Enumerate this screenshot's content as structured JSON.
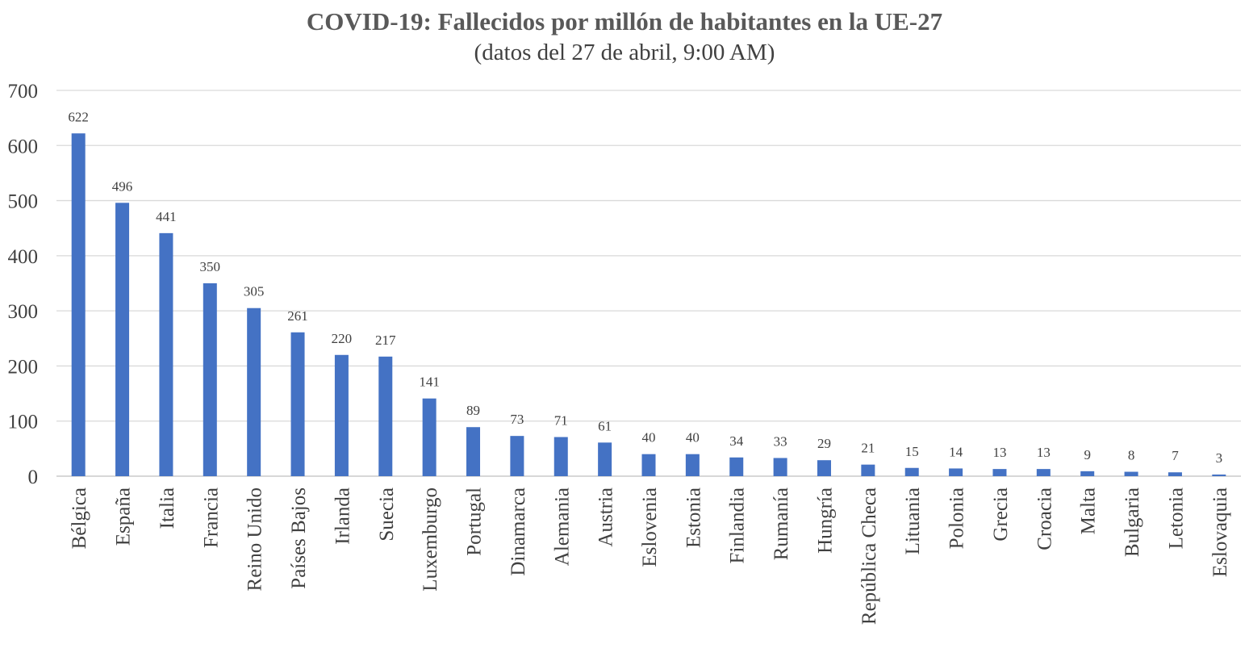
{
  "chart_data": {
    "type": "bar",
    "title": "COVID-19: Fallecidos por millón de habitantes en la UE-27",
    "subtitle": "(datos del 27 de abril, 9:00 AM)",
    "xlabel": "",
    "ylabel": "",
    "ylim": [
      0,
      700
    ],
    "yticks": [
      0,
      100,
      200,
      300,
      400,
      500,
      600,
      700
    ],
    "grid": true,
    "legend": "none",
    "bar_color": "#4472c4",
    "categories": [
      "Bélgica",
      "España",
      "Italia",
      "Francia",
      "Reino Unido",
      "Países Bajos",
      "Irlanda",
      "Suecia",
      "Luxemburgo",
      "Portugal",
      "Dinamarca",
      "Alemania",
      "Austria",
      "Eslovenia",
      "Estonia",
      "Finlandia",
      "Rumanía",
      "Hungría",
      "República Checa",
      "Lituania",
      "Polonia",
      "Grecia",
      "Croacia",
      "Malta",
      "Bulgaria",
      "Letonia",
      "Eslovaquia"
    ],
    "values": [
      622,
      496,
      441,
      350,
      305,
      261,
      220,
      217,
      141,
      89,
      73,
      71,
      61,
      40,
      40,
      34,
      33,
      29,
      21,
      15,
      14,
      13,
      13,
      9,
      8,
      7,
      3
    ]
  }
}
